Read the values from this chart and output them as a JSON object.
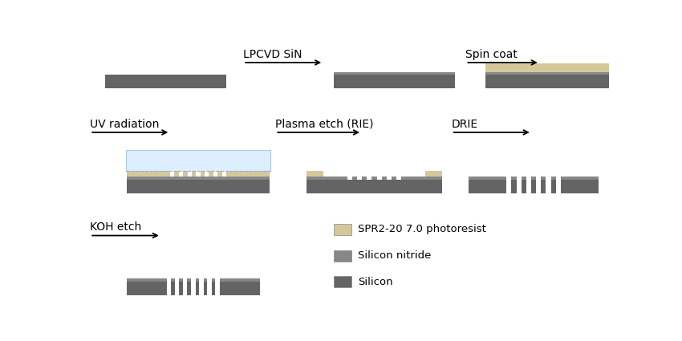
{
  "bg_color": "#ffffff",
  "silicon_color": "#646464",
  "sin_color": "#878787",
  "photoresist_color": "#d4c89a",
  "uv_color": "#ddeeff",
  "white": "#ffffff",
  "label_fontsize": 10,
  "legend_items": [
    {
      "label": "SPR2-20 7.0 photoresist",
      "color": "#d4c89a"
    },
    {
      "label": "Silicon nitride",
      "color": "#878787"
    },
    {
      "label": "Silicon",
      "color": "#646464"
    }
  ]
}
